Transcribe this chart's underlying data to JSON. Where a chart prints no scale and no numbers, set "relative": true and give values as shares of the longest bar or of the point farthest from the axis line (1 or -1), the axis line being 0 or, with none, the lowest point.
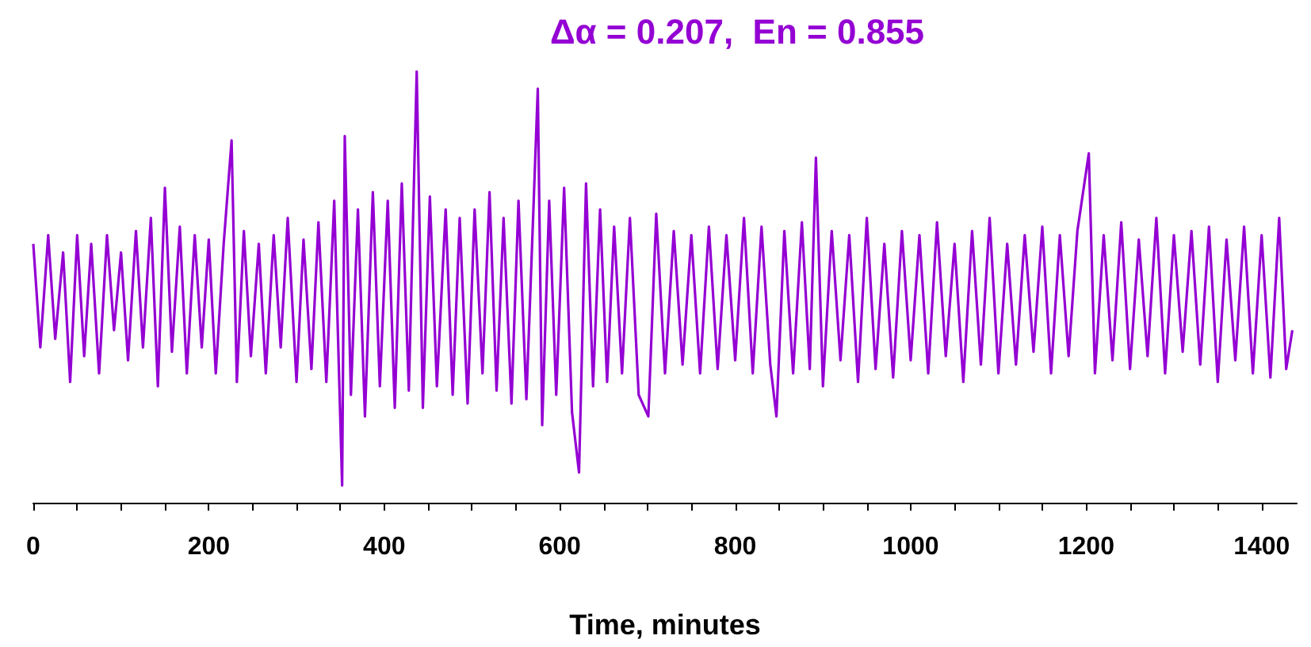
{
  "chart_data": {
    "type": "line",
    "title": "Δα = 0.207,  En = 0.855",
    "xlabel": "Time, minutes",
    "relative": true,
    "color": "#9400d3",
    "xlim": [
      0,
      1440
    ],
    "xticks": [
      0,
      {
        "value": 50,
        "label": null
      },
      200,
      {
        "value": 100,
        "label": null
      },
      {
        "value": 150,
        "label": null
      },
      {
        "value": 250,
        "label": null
      },
      {
        "value": 300,
        "label": null
      },
      {
        "value": 350,
        "label": null
      },
      400,
      {
        "value": 450,
        "label": null
      },
      {
        "value": 500,
        "label": null
      },
      {
        "value": 550,
        "label": null
      },
      600,
      {
        "value": 650,
        "label": null
      },
      {
        "value": 700,
        "label": null
      },
      {
        "value": 750,
        "label": null
      },
      800,
      {
        "value": 850,
        "label": null
      },
      {
        "value": 900,
        "label": null
      },
      {
        "value": 950,
        "label": null
      },
      1000,
      {
        "value": 1050,
        "label": null
      },
      {
        "value": 1100,
        "label": null
      },
      {
        "value": 1150,
        "label": null
      },
      1200,
      {
        "value": 1250,
        "label": null
      },
      {
        "value": 1300,
        "label": null
      },
      {
        "value": 1350,
        "label": null
      },
      1400
    ],
    "x": [
      0,
      8,
      17,
      25,
      34,
      42,
      50,
      58,
      66,
      75,
      84,
      92,
      100,
      108,
      117,
      125,
      134,
      142,
      150,
      158,
      167,
      175,
      184,
      192,
      200,
      208,
      217,
      226,
      232,
      240,
      248,
      257,
      265,
      274,
      282,
      290,
      300,
      308,
      317,
      325,
      334,
      343,
      352,
      355,
      362,
      370,
      378,
      387,
      395,
      404,
      412,
      420,
      428,
      437,
      444,
      452,
      460,
      470,
      478,
      486,
      495,
      503,
      512,
      520,
      528,
      536,
      545,
      553,
      562,
      570,
      575,
      580,
      588,
      596,
      605,
      614,
      622,
      630,
      638,
      646,
      654,
      662,
      671,
      680,
      690,
      701,
      710,
      720,
      730,
      740,
      750,
      760,
      770,
      780,
      790,
      800,
      810,
      820,
      830,
      840,
      847,
      856,
      866,
      876,
      885,
      892,
      900,
      910,
      920,
      930,
      940,
      950,
      960,
      970,
      980,
      990,
      1000,
      1010,
      1020,
      1030,
      1040,
      1050,
      1060,
      1070,
      1080,
      1090,
      1100,
      1110,
      1120,
      1130,
      1140,
      1150,
      1160,
      1170,
      1180,
      1190,
      1203,
      1210,
      1220,
      1230,
      1240,
      1250,
      1260,
      1270,
      1280,
      1290,
      1300,
      1310,
      1320,
      1330,
      1340,
      1350,
      1360,
      1370,
      1380,
      1390,
      1400,
      1410,
      1420,
      1428,
      1435
    ],
    "values": [
      0.6,
      0.36,
      0.62,
      0.38,
      0.58,
      0.28,
      0.62,
      0.34,
      0.6,
      0.3,
      0.62,
      0.4,
      0.58,
      0.33,
      0.63,
      0.36,
      0.66,
      0.27,
      0.73,
      0.35,
      0.64,
      0.3,
      0.62,
      0.36,
      0.61,
      0.3,
      0.6,
      0.84,
      0.28,
      0.63,
      0.34,
      0.6,
      0.3,
      0.62,
      0.36,
      0.66,
      0.28,
      0.61,
      0.31,
      0.65,
      0.28,
      0.7,
      0.04,
      0.85,
      0.25,
      0.68,
      0.2,
      0.72,
      0.27,
      0.7,
      0.22,
      0.74,
      0.26,
      1.0,
      0.22,
      0.71,
      0.27,
      0.68,
      0.25,
      0.66,
      0.23,
      0.68,
      0.3,
      0.72,
      0.26,
      0.66,
      0.23,
      0.7,
      0.24,
      0.68,
      0.96,
      0.18,
      0.7,
      0.25,
      0.73,
      0.21,
      0.07,
      0.74,
      0.27,
      0.68,
      0.28,
      0.64,
      0.3,
      0.66,
      0.25,
      0.2,
      0.67,
      0.3,
      0.63,
      0.32,
      0.62,
      0.3,
      0.64,
      0.31,
      0.62,
      0.33,
      0.66,
      0.3,
      0.64,
      0.32,
      0.2,
      0.63,
      0.3,
      0.65,
      0.31,
      0.8,
      0.27,
      0.63,
      0.33,
      0.62,
      0.28,
      0.66,
      0.31,
      0.6,
      0.29,
      0.63,
      0.33,
      0.62,
      0.3,
      0.65,
      0.34,
      0.6,
      0.28,
      0.63,
      0.32,
      0.66,
      0.3,
      0.6,
      0.32,
      0.62,
      0.35,
      0.64,
      0.3,
      0.62,
      0.34,
      0.63,
      0.81,
      0.3,
      0.62,
      0.33,
      0.65,
      0.31,
      0.61,
      0.34,
      0.66,
      0.3,
      0.62,
      0.35,
      0.63,
      0.32,
      0.64,
      0.28,
      0.61,
      0.33,
      0.64,
      0.3,
      0.62,
      0.29,
      0.66,
      0.31,
      0.4
    ]
  }
}
